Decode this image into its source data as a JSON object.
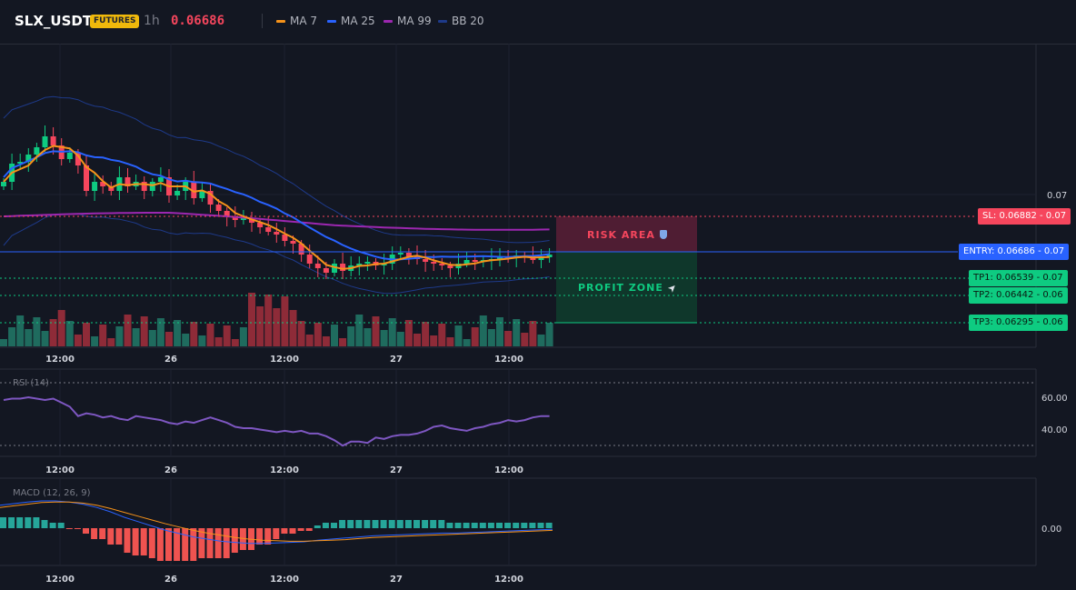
{
  "header": {
    "symbol": "SLX_USDT",
    "badge": "FUTURES",
    "timeframe": "1h",
    "price": "0.06686",
    "legend": [
      {
        "label": "MA 7",
        "color": "#f7931a"
      },
      {
        "label": "MA 25",
        "color": "#2962ff"
      },
      {
        "label": "MA 99",
        "color": "#9c27b0"
      },
      {
        "label": "BB 20",
        "color": "#1e3a8a"
      }
    ]
  },
  "zones": {
    "risk": "RISK AREA",
    "risk_icon": "shield-icon",
    "profit": "PROFIT ZONE",
    "profit_icon": "rocket-icon"
  },
  "levels": {
    "sl": "SL: 0.06882 - 0.07",
    "entry": "ENTRY: 0.06686 - 0.07",
    "tp1": "TP1: 0.06539 - 0.07",
    "tp2": "TP2: 0.06442 - 0.06",
    "tp3": "TP3: 0.06295 - 0.06"
  },
  "colors": {
    "up": "#0ecb81",
    "down": "#f6465d",
    "vol_up": "#1f6b5e",
    "vol_down": "#8e2b38"
  },
  "chart_data": [
    {
      "type": "candlestick",
      "x_ticks": [
        "12:00",
        "26",
        "12:00",
        "27",
        "12:00"
      ],
      "y_ticks": [
        "0.07"
      ],
      "price_levels": {
        "sl": 0.06882,
        "entry": 0.06686,
        "tp1": 0.06539,
        "tp2": 0.06442,
        "tp3": 0.06295
      }
    },
    {
      "type": "line",
      "title": "RSI (14)",
      "y_ticks": [
        "60.00",
        "40.00"
      ],
      "ylim": [
        25,
        90
      ],
      "levels": [
        70,
        30
      ],
      "x_ticks": [
        "12:00",
        "26",
        "12:00",
        "27",
        "12:00"
      ],
      "series": [
        {
          "color": "#7e57c2",
          "values": [
            67,
            68,
            68,
            69,
            68,
            67,
            68,
            65,
            62,
            55,
            57,
            56,
            54,
            55,
            53,
            52,
            55,
            54,
            53,
            52,
            50,
            49,
            51,
            50,
            52,
            54,
            52,
            50,
            47,
            46,
            46,
            45,
            44,
            43,
            44,
            43,
            44,
            42,
            42,
            40,
            37,
            33,
            36,
            36,
            35,
            39,
            38,
            40,
            41,
            41,
            42,
            44,
            47,
            48,
            46,
            45,
            44,
            46,
            47,
            49,
            50,
            52,
            51,
            52,
            54,
            55,
            55
          ]
        }
      ]
    },
    {
      "type": "bar",
      "title": "MACD (12, 26, 9)",
      "y_ticks": [
        "0.00"
      ],
      "x_ticks": [
        "12:00",
        "26",
        "12:00",
        "27",
        "12:00"
      ],
      "series": [
        {
          "color": "#2962ff",
          "values": [
            42,
            45,
            48,
            50,
            50,
            48,
            44,
            38,
            30,
            20,
            12,
            4,
            -4,
            -10,
            -16,
            -20,
            -24,
            -26,
            -28,
            -28,
            -27,
            -26,
            -25,
            -22,
            -20,
            -18,
            -16,
            -14,
            -13,
            -12,
            -11,
            -10,
            -9,
            -9,
            -8,
            -7,
            -6,
            -5,
            -4,
            -3,
            -2
          ]
        },
        {
          "color": "#f7931a",
          "values": [
            38,
            41,
            44,
            47,
            48,
            48,
            46,
            42,
            36,
            29,
            22,
            15,
            8,
            2,
            -4,
            -9,
            -13,
            -17,
            -20,
            -22,
            -23,
            -24,
            -24,
            -23,
            -22,
            -21,
            -19,
            -17,
            -16,
            -15,
            -14,
            -13,
            -12,
            -11,
            -10,
            -9,
            -8,
            -7,
            -6,
            -5,
            -4
          ]
        }
      ]
    }
  ]
}
